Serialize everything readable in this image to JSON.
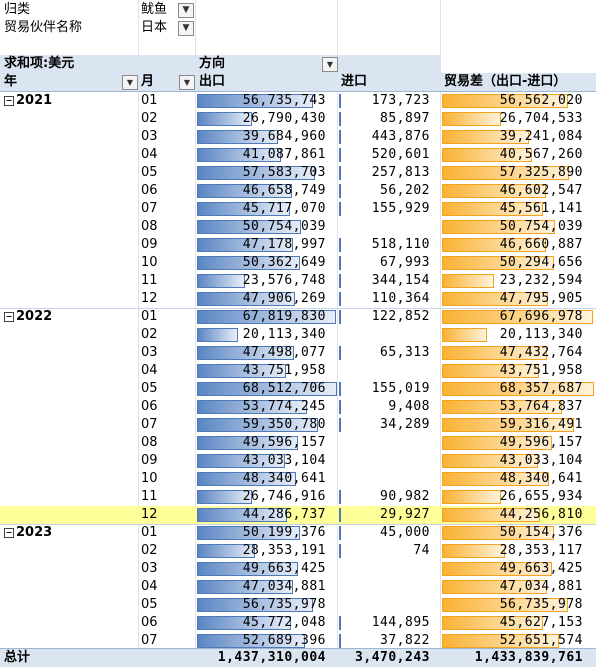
{
  "filters": [
    {
      "label": "归类",
      "value": "鱿鱼"
    },
    {
      "label": "贸易伙伴名称",
      "value": "日本"
    }
  ],
  "pivot": {
    "values_label": "求和项:美元",
    "column_field": "方向",
    "row_field_year": "年",
    "row_field_month": "月",
    "col_export": "出口",
    "col_import": "进口",
    "col_balance": "贸易差（出口-进口）",
    "max_export": 68512706,
    "max_import": 520601,
    "max_balance": 68357687
  },
  "rows": [
    {
      "year": "2021",
      "month": "01",
      "export": "56,735,743",
      "import": "173,723",
      "balance": "56,562,020",
      "e": 56735743,
      "i": 173723,
      "b": 56562020
    },
    {
      "year": "",
      "month": "02",
      "export": "26,790,430",
      "import": "85,897",
      "balance": "26,704,533",
      "e": 26790430,
      "i": 85897,
      "b": 26704533
    },
    {
      "year": "",
      "month": "03",
      "export": "39,684,960",
      "import": "443,876",
      "balance": "39,241,084",
      "e": 39684960,
      "i": 443876,
      "b": 39241084
    },
    {
      "year": "",
      "month": "04",
      "export": "41,087,861",
      "import": "520,601",
      "balance": "40,567,260",
      "e": 41087861,
      "i": 520601,
      "b": 40567260
    },
    {
      "year": "",
      "month": "05",
      "export": "57,583,703",
      "import": "257,813",
      "balance": "57,325,890",
      "e": 57583703,
      "i": 257813,
      "b": 57325890
    },
    {
      "year": "",
      "month": "06",
      "export": "46,658,749",
      "import": "56,202",
      "balance": "46,602,547",
      "e": 46658749,
      "i": 56202,
      "b": 46602547
    },
    {
      "year": "",
      "month": "07",
      "export": "45,717,070",
      "import": "155,929",
      "balance": "45,561,141",
      "e": 45717070,
      "i": 155929,
      "b": 45561141
    },
    {
      "year": "",
      "month": "08",
      "export": "50,754,039",
      "import": "",
      "balance": "50,754,039",
      "e": 50754039,
      "i": 0,
      "b": 50754039
    },
    {
      "year": "",
      "month": "09",
      "export": "47,178,997",
      "import": "518,110",
      "balance": "46,660,887",
      "e": 47178997,
      "i": 518110,
      "b": 46660887
    },
    {
      "year": "",
      "month": "10",
      "export": "50,362,649",
      "import": "67,993",
      "balance": "50,294,656",
      "e": 50362649,
      "i": 67993,
      "b": 50294656
    },
    {
      "year": "",
      "month": "11",
      "export": "23,576,748",
      "import": "344,154",
      "balance": "23,232,594",
      "e": 23576748,
      "i": 344154,
      "b": 23232594
    },
    {
      "year": "",
      "month": "12",
      "export": "47,906,269",
      "import": "110,364",
      "balance": "47,795,905",
      "e": 47906269,
      "i": 110364,
      "b": 47795905
    },
    {
      "year": "2022",
      "month": "01",
      "export": "67,819,830",
      "import": "122,852",
      "balance": "67,696,978",
      "e": 67819830,
      "i": 122852,
      "b": 67696978
    },
    {
      "year": "",
      "month": "02",
      "export": "20,113,340",
      "import": "",
      "balance": "20,113,340",
      "e": 20113340,
      "i": 0,
      "b": 20113340
    },
    {
      "year": "",
      "month": "03",
      "export": "47,498,077",
      "import": "65,313",
      "balance": "47,432,764",
      "e": 47498077,
      "i": 65313,
      "b": 47432764
    },
    {
      "year": "",
      "month": "04",
      "export": "43,751,958",
      "import": "",
      "balance": "43,751,958",
      "e": 43751958,
      "i": 0,
      "b": 43751958
    },
    {
      "year": "",
      "month": "05",
      "export": "68,512,706",
      "import": "155,019",
      "balance": "68,357,687",
      "e": 68512706,
      "i": 155019,
      "b": 68357687
    },
    {
      "year": "",
      "month": "06",
      "export": "53,774,245",
      "import": "9,408",
      "balance": "53,764,837",
      "e": 53774245,
      "i": 9408,
      "b": 53764837
    },
    {
      "year": "",
      "month": "07",
      "export": "59,350,780",
      "import": "34,289",
      "balance": "59,316,491",
      "e": 59350780,
      "i": 34289,
      "b": 59316491
    },
    {
      "year": "",
      "month": "08",
      "export": "49,596,157",
      "import": "",
      "balance": "49,596,157",
      "e": 49596157,
      "i": 0,
      "b": 49596157
    },
    {
      "year": "",
      "month": "09",
      "export": "43,033,104",
      "import": "",
      "balance": "43,033,104",
      "e": 43033104,
      "i": 0,
      "b": 43033104
    },
    {
      "year": "",
      "month": "10",
      "export": "48,340,641",
      "import": "",
      "balance": "48,340,641",
      "e": 48340641,
      "i": 0,
      "b": 48340641
    },
    {
      "year": "",
      "month": "11",
      "export": "26,746,916",
      "import": "90,982",
      "balance": "26,655,934",
      "e": 26746916,
      "i": 90982,
      "b": 26655934
    },
    {
      "year": "",
      "month": "12",
      "export": "44,286,737",
      "import": "29,927",
      "balance": "44,256,810",
      "e": 44286737,
      "i": 29927,
      "b": 44256810,
      "selected": true
    },
    {
      "year": "2023",
      "month": "01",
      "export": "50,199,376",
      "import": "45,000",
      "balance": "50,154,376",
      "e": 50199376,
      "i": 45000,
      "b": 50154376
    },
    {
      "year": "",
      "month": "02",
      "export": "28,353,191",
      "import": "74",
      "balance": "28,353,117",
      "e": 28353191,
      "i": 74,
      "b": 28353117
    },
    {
      "year": "",
      "month": "03",
      "export": "49,663,425",
      "import": "",
      "balance": "49,663,425",
      "e": 49663425,
      "i": 0,
      "b": 49663425
    },
    {
      "year": "",
      "month": "04",
      "export": "47,034,881",
      "import": "",
      "balance": "47,034,881",
      "e": 47034881,
      "i": 0,
      "b": 47034881
    },
    {
      "year": "",
      "month": "05",
      "export": "56,735,978",
      "import": "",
      "balance": "56,735,978",
      "e": 56735978,
      "i": 0,
      "b": 56735978
    },
    {
      "year": "",
      "month": "06",
      "export": "45,772,048",
      "import": "144,895",
      "balance": "45,627,153",
      "e": 45772048,
      "i": 144895,
      "b": 45627153
    },
    {
      "year": "",
      "month": "07",
      "export": "52,689,396",
      "import": "37,822",
      "balance": "52,651,574",
      "e": 52689396,
      "i": 37822,
      "b": 52651574
    }
  ],
  "total": {
    "label": "总计",
    "export": "1,437,310,004",
    "import": "3,470,243",
    "balance": "1,433,839,761"
  },
  "colors": {
    "export_bar": "#5b86c3",
    "balance_bar": "#f9b233",
    "selected_row": "#ffff99",
    "header_band": "#dbe5f1"
  }
}
